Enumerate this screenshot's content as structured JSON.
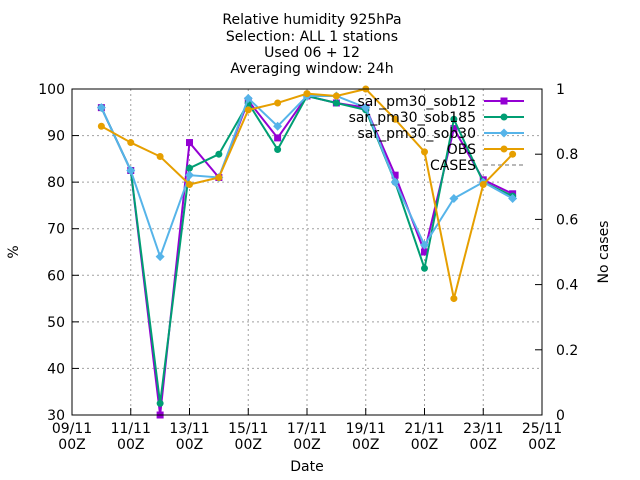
{
  "chart_data": {
    "type": "line",
    "title_lines": [
      "Relative humidity 925hPa",
      "Selection: ALL      1 stations",
      "Used 06 + 12",
      "Averaging window: 24h"
    ],
    "xlabel": "Date",
    "ylabel": "%",
    "y2label": "No cases",
    "x_ticks": [
      {
        "date": "2023-11-09",
        "line1": "09/11",
        "line2": "00Z"
      },
      {
        "date": "2023-11-11",
        "line1": "11/11",
        "line2": "00Z"
      },
      {
        "date": "2023-11-13",
        "line1": "13/11",
        "line2": "00Z"
      },
      {
        "date": "2023-11-15",
        "line1": "15/11",
        "line2": "00Z"
      },
      {
        "date": "2023-11-17",
        "line1": "17/11",
        "line2": "00Z"
      },
      {
        "date": "2023-11-19",
        "line1": "19/11",
        "line2": "00Z"
      },
      {
        "date": "2023-11-21",
        "line1": "21/11",
        "line2": "00Z"
      },
      {
        "date": "2023-11-23",
        "line1": "23/11",
        "line2": "00Z"
      },
      {
        "date": "2023-11-25",
        "line1": "25/11",
        "line2": "00Z"
      }
    ],
    "xlim": [
      "2023-11-09",
      "2023-11-25"
    ],
    "ylim": [
      30,
      100
    ],
    "y_ticks": [
      "30",
      "40",
      "50",
      "60",
      "70",
      "80",
      "90",
      "100"
    ],
    "y2lim": [
      0,
      1
    ],
    "y2_ticks": [
      "0",
      "0.2",
      "0.4",
      "0.6",
      "0.8",
      "1"
    ],
    "grid": true,
    "legend_position": "top-right",
    "series": [
      {
        "name": "sar_pm30_sob12",
        "color": "#9400d3",
        "marker": "square",
        "points": [
          {
            "x": "2023-11-10",
            "y": 96.0
          },
          {
            "x": "2023-11-11",
            "y": 82.5
          },
          {
            "x": "2023-11-12",
            "y": 30.0
          },
          {
            "x": "2023-11-13",
            "y": 88.5
          },
          {
            "x": "2023-11-14",
            "y": 81.0
          },
          {
            "x": "2023-11-15",
            "y": 97.5
          },
          {
            "x": "2023-11-16",
            "y": 89.5
          },
          {
            "x": "2023-11-17",
            "y": 98.5
          },
          {
            "x": "2023-11-18",
            "y": 97.0
          },
          {
            "x": "2023-11-19",
            "y": 96.0
          },
          {
            "x": "2023-11-20",
            "y": 81.5
          },
          {
            "x": "2023-11-21",
            "y": 65.0
          },
          {
            "x": "2023-11-22",
            "y": 91.5
          },
          {
            "x": "2023-11-23",
            "y": 80.5
          },
          {
            "x": "2023-11-24",
            "y": 77.5
          }
        ]
      },
      {
        "name": "sar_pm30_sob185",
        "color": "#009e73",
        "marker": "circle",
        "points": [
          {
            "x": "2023-11-10",
            "y": 96.0
          },
          {
            "x": "2023-11-11",
            "y": 82.5
          },
          {
            "x": "2023-11-12",
            "y": 32.5
          },
          {
            "x": "2023-11-13",
            "y": 83.0
          },
          {
            "x": "2023-11-14",
            "y": 86.0
          },
          {
            "x": "2023-11-15",
            "y": 97.0
          },
          {
            "x": "2023-11-16",
            "y": 87.0
          },
          {
            "x": "2023-11-17",
            "y": 98.5
          },
          {
            "x": "2023-11-18",
            "y": 97.0
          },
          {
            "x": "2023-11-19",
            "y": 95.5
          },
          {
            "x": "2023-11-20",
            "y": 80.0
          },
          {
            "x": "2023-11-21",
            "y": 61.5
          },
          {
            "x": "2023-11-22",
            "y": 93.5
          },
          {
            "x": "2023-11-23",
            "y": 80.0
          },
          {
            "x": "2023-11-24",
            "y": 77.0
          }
        ]
      },
      {
        "name": "sar_pm30_sob30",
        "color": "#56b4e9",
        "marker": "diamond",
        "points": [
          {
            "x": "2023-11-10",
            "y": 96.0
          },
          {
            "x": "2023-11-11",
            "y": 82.5
          },
          {
            "x": "2023-11-12",
            "y": 64.0
          },
          {
            "x": "2023-11-13",
            "y": 81.5
          },
          {
            "x": "2023-11-14",
            "y": 81.0
          },
          {
            "x": "2023-11-15",
            "y": 98.0
          },
          {
            "x": "2023-11-16",
            "y": 92.0
          },
          {
            "x": "2023-11-17",
            "y": 98.5
          },
          {
            "x": "2023-11-18",
            "y": 98.5
          },
          {
            "x": "2023-11-19",
            "y": 96.0
          },
          {
            "x": "2023-11-20",
            "y": 80.0
          },
          {
            "x": "2023-11-21",
            "y": 66.5
          },
          {
            "x": "2023-11-22",
            "y": 76.5
          },
          {
            "x": "2023-11-23",
            "y": 80.0
          },
          {
            "x": "2023-11-24",
            "y": 76.5
          }
        ]
      },
      {
        "name": "OBS",
        "color": "#e69f00",
        "marker": "circle",
        "points": [
          {
            "x": "2023-11-10",
            "y": 92.0
          },
          {
            "x": "2023-11-11",
            "y": 88.5
          },
          {
            "x": "2023-11-12",
            "y": 85.5
          },
          {
            "x": "2023-11-13",
            "y": 79.5
          },
          {
            "x": "2023-11-14",
            "y": 81.0
          },
          {
            "x": "2023-11-15",
            "y": 95.5
          },
          {
            "x": "2023-11-16",
            "y": 97.0
          },
          {
            "x": "2023-11-17",
            "y": 99.0
          },
          {
            "x": "2023-11-18",
            "y": 98.5
          },
          {
            "x": "2023-11-19",
            "y": 100.0
          },
          {
            "x": "2023-11-20",
            "y": 93.5
          },
          {
            "x": "2023-11-21",
            "y": 86.5
          },
          {
            "x": "2023-11-22",
            "y": 55.0
          },
          {
            "x": "2023-11-23",
            "y": 79.5
          },
          {
            "x": "2023-11-24",
            "y": 86.0
          }
        ]
      }
    ],
    "cases": {
      "name": "CASES",
      "color": "#a0a0a0",
      "style": "dashed",
      "points": []
    }
  }
}
